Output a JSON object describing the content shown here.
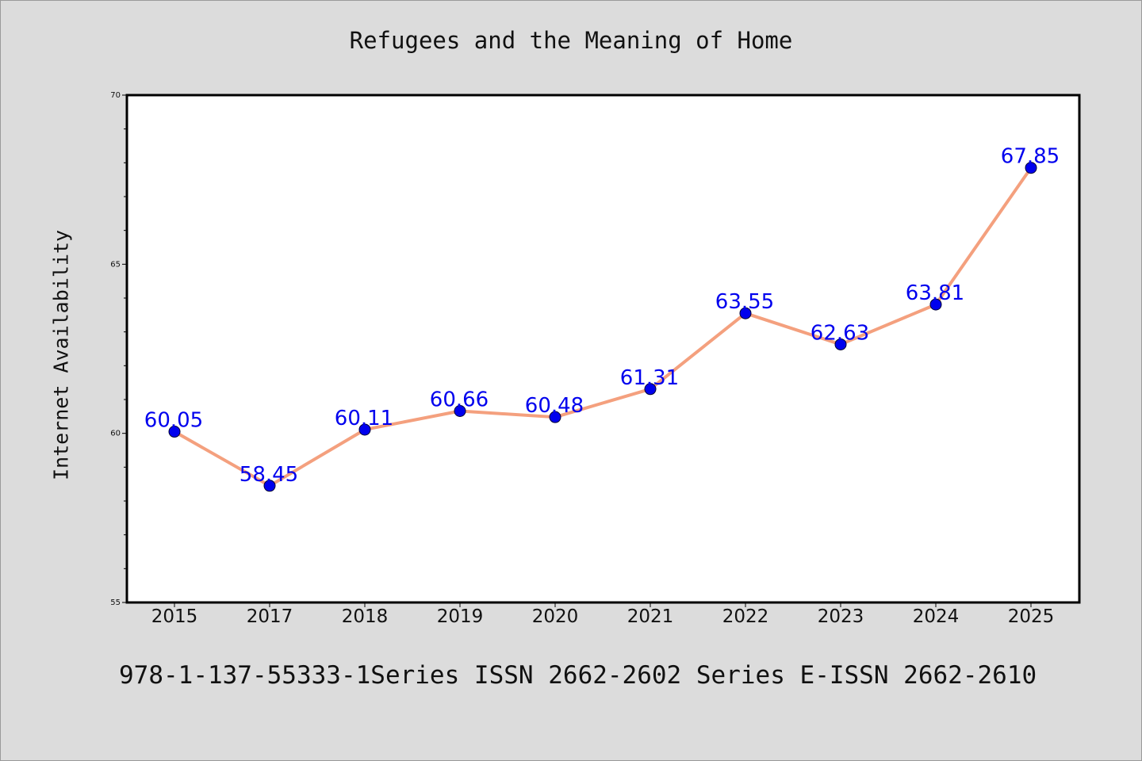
{
  "chart_data": {
    "type": "line",
    "title": "Refugees and the Meaning of Home",
    "xlabel": "",
    "ylabel": "Internet Availability",
    "categories": [
      "2015",
      "2017",
      "2018",
      "2019",
      "2020",
      "2021",
      "2022",
      "2023",
      "2024",
      "2025"
    ],
    "series": [
      {
        "values": [
          60.05,
          58.45,
          60.11,
          60.66,
          60.48,
          61.31,
          63.55,
          62.63,
          63.81,
          67.85
        ],
        "labels": [
          "60.05",
          "58.45",
          "60.11",
          "60.66",
          "60.48",
          "61.31",
          "63.55",
          "62.63",
          "63.81",
          "67.85"
        ]
      }
    ],
    "ylim": [
      55,
      70
    ],
    "yticks": [
      "55",
      "60",
      "65",
      "70"
    ],
    "grid": false,
    "legend": "none",
    "colors": {
      "line": "#f4a07e",
      "marker": "#0000ee",
      "label": "#0000ee",
      "background": "#dcdcdc",
      "plot_bg": "#ffffff"
    }
  },
  "footer": "978-1-137-55333-1Series ISSN 2662-2602 Series E-ISSN 2662-2610"
}
